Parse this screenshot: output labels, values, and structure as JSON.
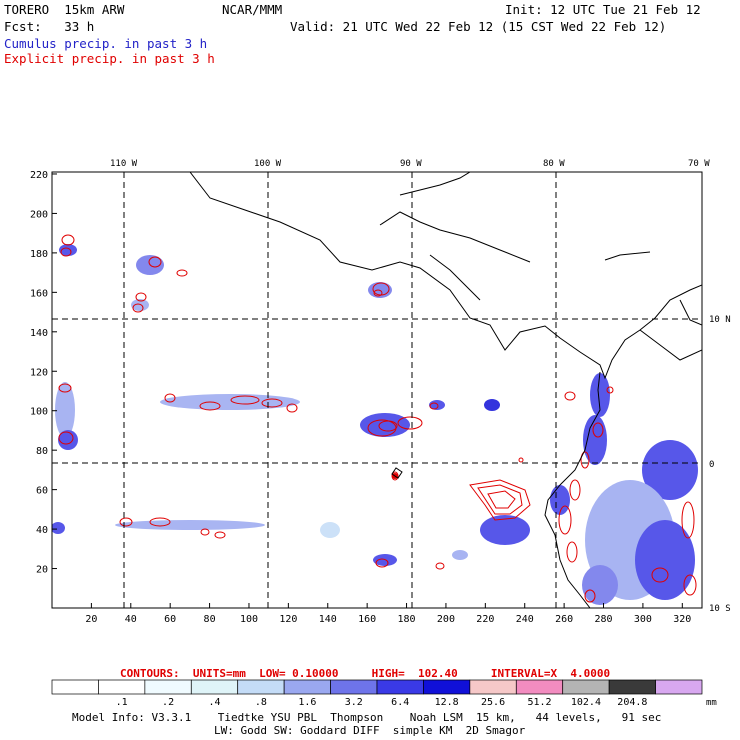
{
  "header": {
    "model": "TORERO  15km ARW",
    "org": "NCAR/MMM",
    "init": "Init: 12 UTC Tue 21 Feb 12",
    "fcst": "Fcst:   33 h",
    "valid": "Valid: 21 UTC Wed 22 Feb 12 (15 CST Wed 22 Feb 12)",
    "cumulus": "Cumulus precip. in past 3 h",
    "explicit": "Explicit precip. in past 3 h"
  },
  "map": {
    "lon_labels": [
      "110 W",
      "100 W",
      "90 W",
      "80 W",
      "70 W"
    ],
    "lat_labels": [
      "10 N",
      "0",
      "10 S"
    ],
    "x_ticks": [
      "20",
      "40",
      "60",
      "80",
      "100",
      "120",
      "140",
      "160",
      "180",
      "200",
      "220",
      "240",
      "260",
      "280",
      "300",
      "320"
    ],
    "y_ticks": [
      "20",
      "40",
      "60",
      "80",
      "100",
      "120",
      "140",
      "160",
      "180",
      "200",
      "220"
    ]
  },
  "contours": {
    "label": "CONTOURS:  UNITS=mm  LOW= 0.10000     HIGH=  102.40     INTERVAL=X  4.0000"
  },
  "colorbar": {
    "colors": [
      "#ffffff",
      "#ffffff",
      "#f0fbff",
      "#dff4f8",
      "#c4dcf7",
      "#9aa8f0",
      "#6e74ea",
      "#3a3ae6",
      "#1010d8",
      "#f6c8c8",
      "#f28cc0",
      "#b4b4b4",
      "#3a3a3a",
      "#d8a8f0"
    ],
    "labels": [
      ".1",
      ".2",
      ".4",
      ".8",
      "1.6",
      "3.2",
      "6.4",
      "12.8",
      "25.6",
      "51.2",
      "102.4",
      "204.8"
    ],
    "unit": "mm"
  },
  "footer": {
    "line1": "Model Info: V3.3.1    Tiedtke YSU PBL  Thompson    Noah LSM  15 km,   44 levels,   91 sec",
    "line2": "LW: Godd SW: Goddard DIFF  simple KM  2D Smagor"
  }
}
